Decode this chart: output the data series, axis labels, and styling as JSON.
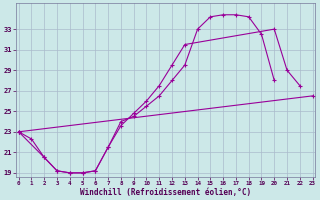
{
  "xlabel": "Windchill (Refroidissement éolien,°C)",
  "bg_color": "#cce8e8",
  "line_color": "#990099",
  "grid_color": "#aabbcc",
  "line1_x": [
    0,
    1,
    2,
    3,
    4,
    5,
    6,
    7,
    8,
    9,
    10,
    11,
    12,
    13,
    14,
    15,
    16,
    17,
    18,
    19,
    20
  ],
  "line1_y": [
    23.0,
    22.3,
    20.5,
    19.2,
    19.0,
    19.0,
    19.2,
    21.5,
    24.0,
    24.5,
    25.5,
    26.5,
    28.0,
    29.5,
    33.0,
    34.2,
    34.4,
    34.4,
    34.2,
    32.5,
    28.0
  ],
  "line2_x": [
    0,
    23
  ],
  "line2_y": [
    23.0,
    26.5
  ],
  "line3_x": [
    0,
    2,
    3,
    4,
    5,
    6,
    7,
    8,
    9,
    10,
    11,
    12,
    13,
    20,
    21,
    22
  ],
  "line3_y": [
    23.0,
    20.5,
    19.2,
    19.0,
    19.0,
    19.2,
    21.5,
    23.6,
    24.8,
    26.0,
    27.5,
    29.5,
    31.5,
    33.0,
    29.0,
    27.5
  ],
  "xlim": [
    -0.2,
    23.2
  ],
  "ylim": [
    18.6,
    35.5
  ],
  "yticks": [
    19,
    21,
    23,
    25,
    27,
    29,
    31,
    33
  ],
  "xticks": [
    0,
    1,
    2,
    3,
    4,
    5,
    6,
    7,
    8,
    9,
    10,
    11,
    12,
    13,
    14,
    15,
    16,
    17,
    18,
    19,
    20,
    21,
    22,
    23
  ]
}
